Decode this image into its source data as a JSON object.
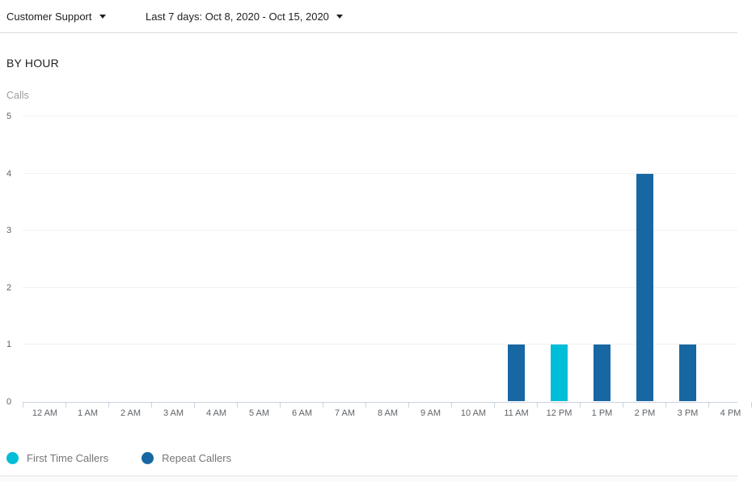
{
  "header": {
    "account_selector": {
      "label": "Customer Support"
    },
    "date_range_selector": {
      "label": "Last 7 days: Oct 8, 2020 - Oct 15, 2020"
    }
  },
  "section": {
    "title": "BY HOUR"
  },
  "chart_data": {
    "type": "bar",
    "title": "BY HOUR",
    "xlabel": "",
    "ylabel": "Calls",
    "ylim": [
      0,
      5
    ],
    "yticks": [
      0,
      1,
      2,
      3,
      4,
      5
    ],
    "grid": true,
    "legend_position": "bottom",
    "categories": [
      "12 AM",
      "1 AM",
      "2 AM",
      "3 AM",
      "4 AM",
      "5 AM",
      "6 AM",
      "7 AM",
      "8 AM",
      "9 AM",
      "10 AM",
      "11 AM",
      "12 PM",
      "1 PM",
      "2 PM",
      "3 PM",
      "4 PM"
    ],
    "series": [
      {
        "name": "First Time Callers",
        "color": "#00bdd8",
        "values": [
          0,
          0,
          0,
          0,
          0,
          0,
          0,
          0,
          0,
          0,
          0,
          0,
          1,
          0,
          0,
          0,
          0
        ]
      },
      {
        "name": "Repeat Callers",
        "color": "#1767a3",
        "values": [
          0,
          0,
          0,
          0,
          0,
          0,
          0,
          0,
          0,
          0,
          0,
          1,
          0,
          1,
          4,
          1,
          0
        ]
      }
    ]
  },
  "legend": {
    "items": [
      {
        "label": "First Time Callers",
        "color": "#00bdd8"
      },
      {
        "label": "Repeat Callers",
        "color": "#1767a3"
      }
    ]
  }
}
